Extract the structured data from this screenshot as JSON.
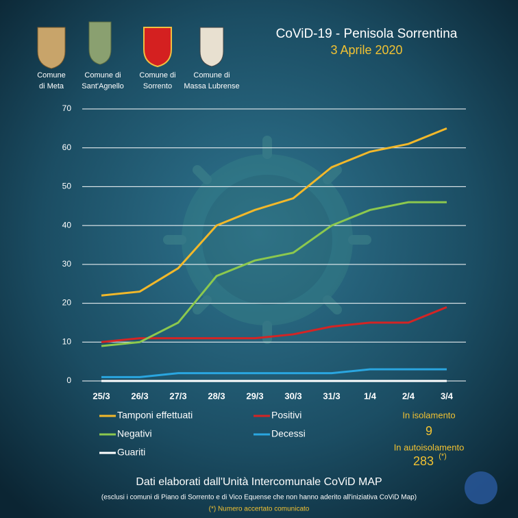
{
  "header": {
    "logos": [
      {
        "caption": [
          "Comune",
          "di Meta"
        ]
      },
      {
        "caption": [
          "Comune di",
          "Sant'Agnello"
        ]
      },
      {
        "caption": [
          "Comune di",
          "Sorrento"
        ]
      },
      {
        "caption": [
          "Comune di",
          "Massa Lubrense"
        ]
      }
    ]
  },
  "chart_data": {
    "type": "line",
    "title": "CoViD-19  - Penisola Sorrentina",
    "subtitle": "3 Aprile 2020",
    "categories": [
      "25/3",
      "26/3",
      "27/3",
      "28/3",
      "29/3",
      "30/3",
      "31/3",
      "1/4",
      "2/4",
      "3/4"
    ],
    "series": [
      {
        "name": "Tamponi effettuati",
        "color": "#f2b82a",
        "values": [
          22,
          23,
          29,
          40,
          44,
          47,
          55,
          59,
          61,
          65
        ]
      },
      {
        "name": "Positivi",
        "color": "#d42424",
        "values": [
          10,
          11,
          11,
          11,
          11,
          12,
          14,
          15,
          15,
          19
        ]
      },
      {
        "name": "Negativi",
        "color": "#8cc84e",
        "values": [
          9,
          10,
          15,
          27,
          31,
          33,
          40,
          44,
          46,
          46
        ]
      },
      {
        "name": "Decessi",
        "color": "#2aa6e0",
        "values": [
          1,
          1,
          2,
          2,
          2,
          2,
          2,
          3,
          3,
          3
        ]
      },
      {
        "name": "Guariti",
        "color": "#ffffff",
        "values": [
          0,
          0,
          0,
          0,
          0,
          0,
          0,
          0,
          0,
          0
        ]
      }
    ],
    "ylim": [
      0,
      70
    ],
    "yticks": [
      0,
      10,
      20,
      30,
      40,
      50,
      60,
      70
    ],
    "grid": true
  },
  "stats": [
    {
      "label": "In isolamento",
      "value": 9
    },
    {
      "label": "In autoisolamento",
      "value": 283,
      "note": "(*)"
    }
  ],
  "footer": {
    "title": "Dati elaborati  dall'Unità Intercomunale  CoViD MAP",
    "note": "(esclusi i comuni di Piano di Sorrento e di Vico Equense che non hanno aderito all'iniziativa CoViD Map)",
    "footnote": "(*) Numero accertato comunicato"
  }
}
